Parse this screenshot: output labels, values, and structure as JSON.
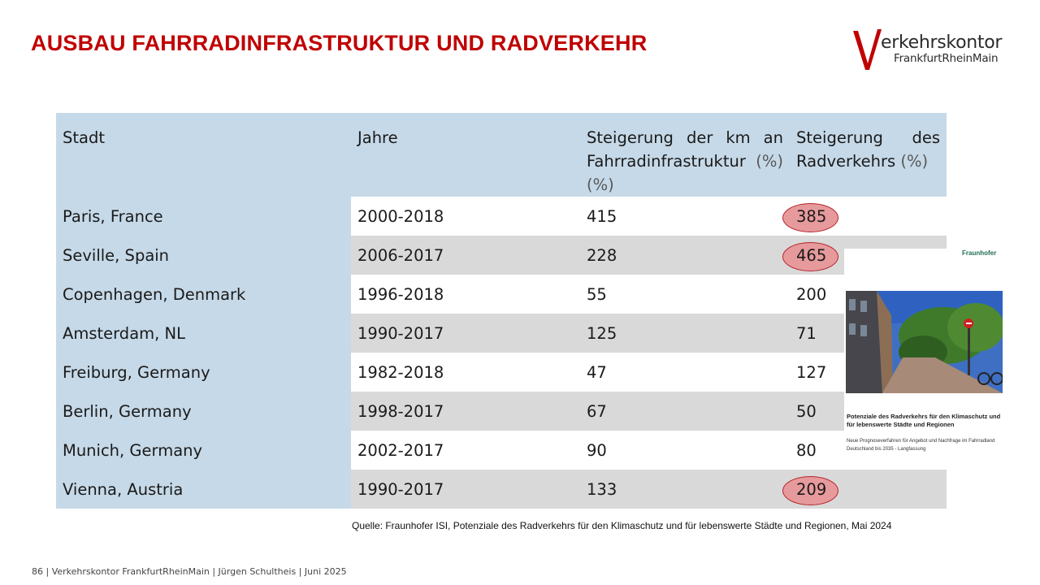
{
  "slide": {
    "title": "AUSBAU FAHRRADINFRASTRUKTUR UND RADVERKEHR",
    "logo": {
      "text_main": "erkehrskontor",
      "text_sub": "FrankfurtRheinMain",
      "letter": "V"
    },
    "table": {
      "headers": {
        "city": "Stadt",
        "years": "Jahre",
        "infra_line1": "Steigerung der km an",
        "infra_line2_text": "Fahrradinfrastruktur",
        "infra_line2_unit": "(%)",
        "infra_line3": "(%)",
        "traffic_line1": "Steigerung des",
        "traffic_line2_text": "Radverkehrs",
        "traffic_line2_unit": "(%)"
      },
      "rows": [
        {
          "city": "Paris, France",
          "years": "2000-2018",
          "infra": "415",
          "traffic": "385",
          "highlight": true
        },
        {
          "city": "Seville, Spain",
          "years": "2006-2017",
          "infra": "228",
          "traffic": "465",
          "highlight": true
        },
        {
          "city": "Copenhagen, Denmark",
          "years": "1996-2018",
          "infra": "55",
          "traffic": "200",
          "highlight": false
        },
        {
          "city": "Amsterdam, NL",
          "years": "1990-2017",
          "infra": "125",
          "traffic": "71",
          "highlight": false
        },
        {
          "city": "Freiburg, Germany",
          "years": "1982-2018",
          "infra": "47",
          "traffic": "127",
          "highlight": false
        },
        {
          "city": "Berlin, Germany",
          "years": "1998-2017",
          "infra": "67",
          "traffic": "50",
          "highlight": false
        },
        {
          "city": "Munich, Germany",
          "years": "2002-2017",
          "infra": "90",
          "traffic": "80",
          "highlight": false
        },
        {
          "city": "Vienna, Austria",
          "years": "1990-2017",
          "infra": "133",
          "traffic": "209",
          "highlight": true
        }
      ]
    },
    "report": {
      "publisher": "Fraunhofer",
      "title": "Potenziale des Radverkehrs für den Klimaschutz und für lebenswerte Städte und Regionen",
      "subtitle": "Neue Prognoseverfahren für Angebot und Nachfrage im Fahrradland Deutschland bis 2035 - Langfassung"
    },
    "source": "Quelle: Fraunhofer ISI, Potenziale des Radverkehrs für den Klimaschutz und für lebenswerte Städte und Regionen, Mai 2024",
    "footer": "86  |   Verkehrskontor FrankfurtRheinMain  | Jürgen Schultheis  |  Juni 2025",
    "colors": {
      "title_red": "#c00000",
      "header_blue": "#c6d9e8",
      "row_grey": "#d9d9d9",
      "highlight_fill": "#e79a9c",
      "highlight_border": "#b4232b"
    }
  }
}
